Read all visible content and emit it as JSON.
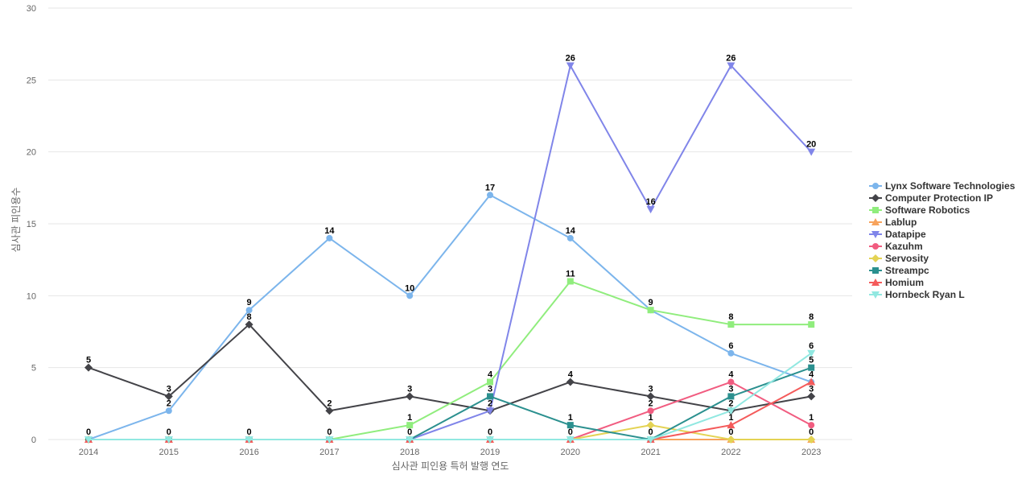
{
  "chart_data": {
    "type": "line",
    "title": "",
    "xlabel": "심사관 피인용 특허 발행 연도",
    "ylabel": "심사관 피인용수",
    "categories": [
      "2014",
      "2015",
      "2016",
      "2017",
      "2018",
      "2019",
      "2020",
      "2021",
      "2022",
      "2023"
    ],
    "ylim": [
      0,
      30
    ],
    "yticks": [
      0,
      5,
      10,
      15,
      20,
      25,
      30
    ],
    "grid": "horizontal",
    "legend_position": "right",
    "series": [
      {
        "name": "Lynx Software Technologies",
        "color": "#7cb5ec",
        "marker": "circle",
        "values": [
          0,
          2,
          9,
          14,
          10,
          17,
          14,
          9,
          6,
          4
        ]
      },
      {
        "name": "Computer Protection IP",
        "color": "#434348",
        "marker": "diamond",
        "values": [
          5,
          3,
          8,
          2,
          3,
          2,
          4,
          3,
          2,
          3
        ]
      },
      {
        "name": "Software Robotics",
        "color": "#90ed7d",
        "marker": "square",
        "values": [
          0,
          0,
          0,
          0,
          1,
          4,
          11,
          9,
          8,
          8
        ]
      },
      {
        "name": "Lablup",
        "color": "#f7a35c",
        "marker": "triangle",
        "values": [
          0,
          0,
          0,
          0,
          0,
          0,
          0,
          0,
          0,
          0
        ]
      },
      {
        "name": "Datapipe",
        "color": "#8085e9",
        "marker": "triangle-down",
        "values": [
          0,
          0,
          0,
          0,
          0,
          2,
          26,
          16,
          26,
          20
        ]
      },
      {
        "name": "Kazuhm",
        "color": "#f15c80",
        "marker": "circle",
        "values": [
          0,
          0,
          0,
          0,
          0,
          0,
          0,
          2,
          4,
          1
        ]
      },
      {
        "name": "Servosity",
        "color": "#e4d354",
        "marker": "diamond",
        "values": [
          0,
          0,
          0,
          0,
          0,
          0,
          0,
          1,
          0,
          0
        ]
      },
      {
        "name": "Streampc",
        "color": "#2b908f",
        "marker": "square",
        "values": [
          0,
          0,
          0,
          0,
          0,
          3,
          1,
          0,
          3,
          5
        ]
      },
      {
        "name": "Homium",
        "color": "#f45b5b",
        "marker": "triangle",
        "values": [
          0,
          0,
          0,
          0,
          0,
          0,
          0,
          0,
          1,
          4
        ]
      },
      {
        "name": "Hornbeck Ryan L",
        "color": "#91e8e1",
        "marker": "triangle-down",
        "values": [
          0,
          0,
          0,
          0,
          0,
          0,
          0,
          0,
          2,
          6
        ]
      }
    ],
    "data_labels": [
      {
        "x": "2014",
        "value": 5
      },
      {
        "x": "2014",
        "value": 0
      },
      {
        "x": "2015",
        "value": 3
      },
      {
        "x": "2015",
        "value": 2
      },
      {
        "x": "2015",
        "value": 0
      },
      {
        "x": "2016",
        "value": 9
      },
      {
        "x": "2016",
        "value": 8
      },
      {
        "x": "2016",
        "value": 0
      },
      {
        "x": "2017",
        "value": 14
      },
      {
        "x": "2017",
        "value": 2
      },
      {
        "x": "2017",
        "value": 0
      },
      {
        "x": "2018",
        "value": 10
      },
      {
        "x": "2018",
        "value": 3
      },
      {
        "x": "2018",
        "value": 1
      },
      {
        "x": "2018",
        "value": 0
      },
      {
        "x": "2019",
        "value": 17
      },
      {
        "x": "2019",
        "value": 4
      },
      {
        "x": "2019",
        "value": 3
      },
      {
        "x": "2019",
        "value": 2
      },
      {
        "x": "2019",
        "value": 0
      },
      {
        "x": "2020",
        "value": 26
      },
      {
        "x": "2020",
        "value": 14
      },
      {
        "x": "2020",
        "value": 11
      },
      {
        "x": "2020",
        "value": 4
      },
      {
        "x": "2020",
        "value": 1
      },
      {
        "x": "2020",
        "value": 0
      },
      {
        "x": "2021",
        "value": 16
      },
      {
        "x": "2021",
        "value": 9
      },
      {
        "x": "2021",
        "value": 3
      },
      {
        "x": "2021",
        "value": 2
      },
      {
        "x": "2021",
        "value": 1
      },
      {
        "x": "2021",
        "value": 0
      },
      {
        "x": "2022",
        "value": 26
      },
      {
        "x": "2022",
        "value": 8
      },
      {
        "x": "2022",
        "value": 6
      },
      {
        "x": "2022",
        "value": 4
      },
      {
        "x": "2022",
        "value": 3
      },
      {
        "x": "2022",
        "value": 2
      },
      {
        "x": "2022",
        "value": 1
      },
      {
        "x": "2022",
        "value": 0
      },
      {
        "x": "2023",
        "value": 20
      },
      {
        "x": "2023",
        "value": 8
      },
      {
        "x": "2023",
        "value": 6
      },
      {
        "x": "2023",
        "value": 5
      },
      {
        "x": "2023",
        "value": 4
      },
      {
        "x": "2023",
        "value": 3
      },
      {
        "x": "2023",
        "value": 1
      },
      {
        "x": "2023",
        "value": 0
      }
    ]
  }
}
